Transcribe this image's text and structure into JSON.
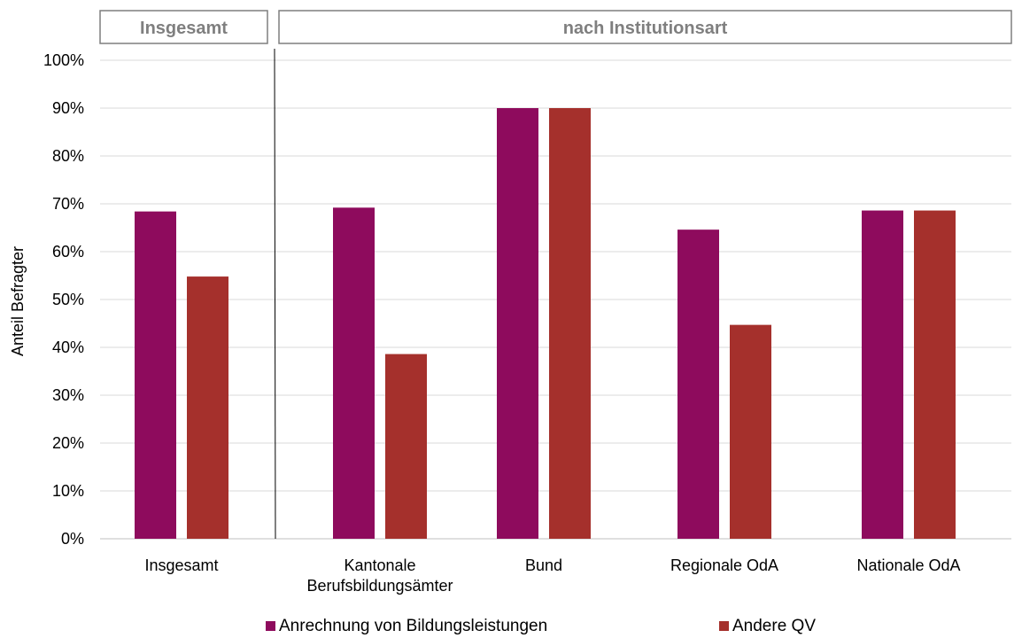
{
  "chart_data": {
    "type": "bar",
    "ylabel": "Anteil Befragter",
    "ylim": [
      0,
      1
    ],
    "yticks": [
      0,
      0.1,
      0.2,
      0.3,
      0.4,
      0.5,
      0.6,
      0.7,
      0.8,
      0.9,
      1.0
    ],
    "ytick_labels": [
      "0%",
      "10%",
      "20%",
      "30%",
      "40%",
      "50%",
      "60%",
      "70%",
      "80%",
      "90%",
      "100%"
    ],
    "grid": true,
    "legend_position": "bottom",
    "categories": [
      {
        "lines": [
          "Insgesamt"
        ]
      },
      {
        "lines": [
          "Kantonale",
          "Berufsbildungsämter"
        ]
      },
      {
        "lines": [
          "Bund"
        ]
      },
      {
        "lines": [
          "Regionale OdA"
        ]
      },
      {
        "lines": [
          "Nationale OdA"
        ]
      }
    ],
    "series": [
      {
        "name": "Anrechnung von Bildungsleistungen",
        "color": "#8e0b5d",
        "values": [
          0.684,
          0.692,
          0.9,
          0.646,
          0.686
        ]
      },
      {
        "name": "Andere QV",
        "color": "#a5302c",
        "values": [
          0.548,
          0.386,
          0.9,
          0.447,
          0.686
        ]
      }
    ],
    "group_headers": [
      {
        "label": "Insgesamt"
      },
      {
        "label": "nach Institutionsart"
      }
    ]
  }
}
